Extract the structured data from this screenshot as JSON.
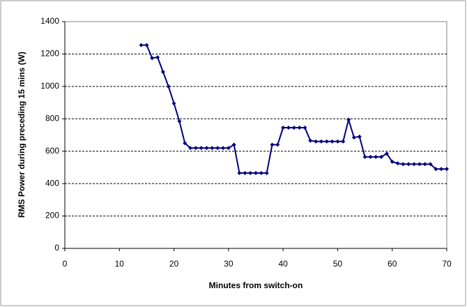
{
  "chart_data": {
    "type": "line",
    "xlabel": "Minutes from switch-on",
    "ylabel": "RMS Power during preceding 15 mins (W)",
    "x": [
      14,
      15,
      16,
      17,
      18,
      19,
      20,
      21,
      22,
      23,
      24,
      25,
      26,
      27,
      28,
      29,
      30,
      31,
      32,
      33,
      34,
      35,
      36,
      37,
      38,
      39,
      40,
      41,
      42,
      43,
      44,
      45,
      46,
      47,
      48,
      49,
      50,
      51,
      52,
      53,
      54,
      55,
      56,
      57,
      58,
      59,
      60,
      61,
      62,
      63,
      64,
      65,
      66,
      67,
      68,
      69,
      70
    ],
    "values": [
      1255,
      1255,
      1175,
      1180,
      1090,
      1000,
      895,
      785,
      650,
      620,
      620,
      620,
      620,
      620,
      620,
      620,
      620,
      640,
      465,
      465,
      465,
      465,
      465,
      465,
      640,
      640,
      745,
      745,
      745,
      745,
      745,
      665,
      660,
      660,
      660,
      660,
      660,
      660,
      795,
      685,
      690,
      565,
      565,
      565,
      565,
      585,
      535,
      525,
      520,
      520,
      520,
      520,
      520,
      520,
      490,
      490,
      490
    ],
    "color": "#000080",
    "xlim": [
      0,
      70
    ],
    "xticks": [
      0,
      10,
      20,
      30,
      40,
      50,
      60,
      70
    ],
    "ylim": [
      0,
      1400
    ],
    "yticks": [
      0,
      200,
      400,
      600,
      800,
      1000,
      1200,
      1400
    ],
    "grid": true
  }
}
